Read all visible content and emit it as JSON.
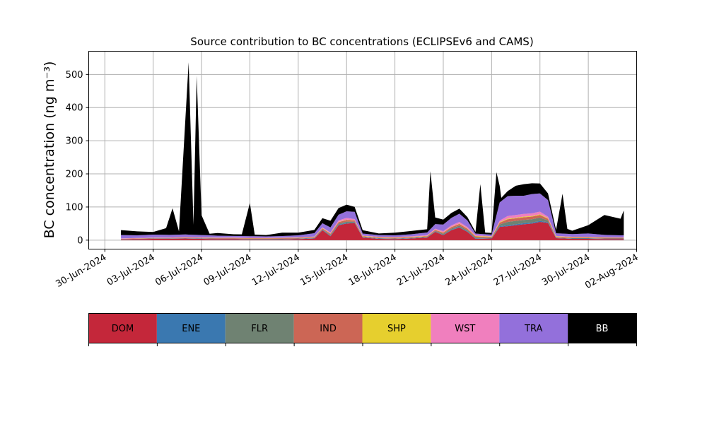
{
  "chart_data": {
    "type": "area",
    "title": "Source contribution to BC concentrations (ECLIPSEv6 and CAMS)",
    "ylabel": "BC concentration (ng m⁻³)",
    "xlabel": "",
    "x_range": [
      "2024-06-29",
      "2024-08-02"
    ],
    "ylim": [
      -27,
      570
    ],
    "grid": true,
    "yticks": [
      0,
      100,
      200,
      300,
      400,
      500
    ],
    "xticks": [
      "30-Jun-2024",
      "03-Jul-2024",
      "06-Jul-2024",
      "09-Jul-2024",
      "12-Jul-2024",
      "15-Jul-2024",
      "18-Jul-2024",
      "21-Jul-2024",
      "24-Jul-2024",
      "27-Jul-2024",
      "30-Jul-2024",
      "02-Aug-2024"
    ],
    "legend_placement": "bottom",
    "series": [
      {
        "name": "DOM",
        "color": "#c4273a",
        "points": [
          [
            "2024-07-01",
            2
          ],
          [
            "2024-07-02",
            3
          ],
          [
            "2024-07-03",
            4
          ],
          [
            "2024-07-04",
            4
          ],
          [
            "2024-07-05",
            5
          ],
          [
            "2024-07-06",
            4
          ],
          [
            "2024-07-07",
            3
          ],
          [
            "2024-07-08",
            3
          ],
          [
            "2024-07-09",
            2
          ],
          [
            "2024-07-10",
            2
          ],
          [
            "2024-07-11",
            2
          ],
          [
            "2024-07-12",
            3
          ],
          [
            "2024-07-13",
            5
          ],
          [
            "2024-07-13.5",
            30
          ],
          [
            "2024-07-14",
            12
          ],
          [
            "2024-07-14.5",
            45
          ],
          [
            "2024-07-15",
            50
          ],
          [
            "2024-07-15.5",
            52
          ],
          [
            "2024-07-16",
            8
          ],
          [
            "2024-07-17",
            4
          ],
          [
            "2024-07-18",
            3
          ],
          [
            "2024-07-19",
            5
          ],
          [
            "2024-07-20",
            8
          ],
          [
            "2024-07-20.5",
            25
          ],
          [
            "2024-07-21",
            15
          ],
          [
            "2024-07-21.5",
            30
          ],
          [
            "2024-07-22",
            38
          ],
          [
            "2024-07-22.5",
            25
          ],
          [
            "2024-07-23",
            4
          ],
          [
            "2024-07-24",
            5
          ],
          [
            "2024-07-24.5",
            40
          ],
          [
            "2024-07-25",
            42
          ],
          [
            "2024-07-25.5",
            45
          ],
          [
            "2024-07-26",
            48
          ],
          [
            "2024-07-26.5",
            50
          ],
          [
            "2024-07-27",
            55
          ],
          [
            "2024-07-27.5",
            52
          ],
          [
            "2024-07-28",
            6
          ],
          [
            "2024-07-29",
            4
          ],
          [
            "2024-07-30",
            4
          ],
          [
            "2024-07-31",
            3
          ],
          [
            "2024-08-01",
            3
          ],
          [
            "2024-08-01.2",
            3
          ]
        ]
      },
      {
        "name": "ENE",
        "color": "#3a78b0",
        "points": [
          [
            "2024-07-01",
            0.5
          ],
          [
            "2024-07-13",
            1
          ],
          [
            "2024-07-15",
            2
          ],
          [
            "2024-07-16",
            1
          ],
          [
            "2024-07-20",
            1
          ],
          [
            "2024-07-22",
            2
          ],
          [
            "2024-07-24",
            1
          ],
          [
            "2024-07-25",
            3
          ],
          [
            "2024-07-27",
            3
          ],
          [
            "2024-07-28",
            1
          ],
          [
            "2024-08-01.2",
            1
          ]
        ]
      },
      {
        "name": "FLR",
        "color": "#6f8272",
        "points": [
          [
            "2024-07-01",
            0.5
          ],
          [
            "2024-07-13",
            1
          ],
          [
            "2024-07-15",
            4
          ],
          [
            "2024-07-16",
            1
          ],
          [
            "2024-07-20",
            1
          ],
          [
            "2024-07-22",
            4
          ],
          [
            "2024-07-24",
            1
          ],
          [
            "2024-07-25",
            10
          ],
          [
            "2024-07-27",
            10
          ],
          [
            "2024-07-28",
            1
          ],
          [
            "2024-08-01.2",
            1
          ]
        ]
      },
      {
        "name": "IND",
        "color": "#cc6655",
        "points": [
          [
            "2024-07-01",
            1
          ],
          [
            "2024-07-13",
            2
          ],
          [
            "2024-07-15",
            5
          ],
          [
            "2024-07-16",
            2
          ],
          [
            "2024-07-20",
            2
          ],
          [
            "2024-07-22",
            5
          ],
          [
            "2024-07-24",
            2
          ],
          [
            "2024-07-25",
            8
          ],
          [
            "2024-07-27",
            8
          ],
          [
            "2024-07-28",
            2
          ],
          [
            "2024-08-01.2",
            2
          ]
        ]
      },
      {
        "name": "SHP",
        "color": "#e6cf2e",
        "points": [
          [
            "2024-07-01",
            0.3
          ],
          [
            "2024-07-15",
            1
          ],
          [
            "2024-07-22",
            1
          ],
          [
            "2024-07-25",
            2
          ],
          [
            "2024-07-27",
            2
          ],
          [
            "2024-08-01.2",
            0.5
          ]
        ]
      },
      {
        "name": "WST",
        "color": "#f07fbe",
        "points": [
          [
            "2024-07-01",
            1
          ],
          [
            "2024-07-13",
            1
          ],
          [
            "2024-07-15",
            5
          ],
          [
            "2024-07-16",
            1
          ],
          [
            "2024-07-20",
            2
          ],
          [
            "2024-07-22",
            5
          ],
          [
            "2024-07-24",
            1
          ],
          [
            "2024-07-25",
            8
          ],
          [
            "2024-07-27",
            8
          ],
          [
            "2024-07-28",
            1
          ],
          [
            "2024-08-01.2",
            1
          ]
        ]
      },
      {
        "name": "TRA",
        "color": "#9370db",
        "points": [
          [
            "2024-07-01",
            10
          ],
          [
            "2024-07-02",
            8
          ],
          [
            "2024-07-03",
            9
          ],
          [
            "2024-07-04",
            8
          ],
          [
            "2024-07-05",
            8
          ],
          [
            "2024-07-06",
            7
          ],
          [
            "2024-07-07",
            6
          ],
          [
            "2024-07-08",
            5
          ],
          [
            "2024-07-09",
            5
          ],
          [
            "2024-07-10",
            4
          ],
          [
            "2024-07-11",
            5
          ],
          [
            "2024-07-12",
            6
          ],
          [
            "2024-07-13",
            10
          ],
          [
            "2024-07-14",
            15
          ],
          [
            "2024-07-15",
            20
          ],
          [
            "2024-07-15.5",
            22
          ],
          [
            "2024-07-16",
            6
          ],
          [
            "2024-07-17",
            5
          ],
          [
            "2024-07-18",
            5
          ],
          [
            "2024-07-19",
            6
          ],
          [
            "2024-07-20",
            8
          ],
          [
            "2024-07-21",
            20
          ],
          [
            "2024-07-22",
            25
          ],
          [
            "2024-07-22.5",
            20
          ],
          [
            "2024-07-23",
            4
          ],
          [
            "2024-07-24",
            5
          ],
          [
            "2024-07-24.5",
            55
          ],
          [
            "2024-07-25",
            60
          ],
          [
            "2024-07-25.5",
            58
          ],
          [
            "2024-07-26",
            55
          ],
          [
            "2024-07-26.5",
            58
          ],
          [
            "2024-07-27",
            55
          ],
          [
            "2024-07-27.5",
            50
          ],
          [
            "2024-07-28",
            8
          ],
          [
            "2024-07-29",
            8
          ],
          [
            "2024-07-30",
            10
          ],
          [
            "2024-07-31",
            7
          ],
          [
            "2024-08-01",
            6
          ],
          [
            "2024-08-01.2",
            6
          ]
        ]
      },
      {
        "name": "BB",
        "color": "#000000",
        "points": [
          [
            "2024-07-01",
            15
          ],
          [
            "2024-07-02",
            12
          ],
          [
            "2024-07-03",
            8
          ],
          [
            "2024-07-03.8",
            20
          ],
          [
            "2024-07-04.2",
            80
          ],
          [
            "2024-07-04.6",
            10
          ],
          [
            "2024-07-05.2",
            520
          ],
          [
            "2024-07-05.5",
            30
          ],
          [
            "2024-07-05.7",
            480
          ],
          [
            "2024-07-06",
            60
          ],
          [
            "2024-07-06.5",
            5
          ],
          [
            "2024-07-07",
            8
          ],
          [
            "2024-07-08",
            5
          ],
          [
            "2024-07-08.5",
            5
          ],
          [
            "2024-07-09",
            100
          ],
          [
            "2024-07-09.3",
            5
          ],
          [
            "2024-07-10",
            4
          ],
          [
            "2024-07-11",
            10
          ],
          [
            "2024-07-12",
            8
          ],
          [
            "2024-07-13",
            10
          ],
          [
            "2024-07-14",
            20
          ],
          [
            "2024-07-15",
            20
          ],
          [
            "2024-07-16",
            10
          ],
          [
            "2024-07-17",
            5
          ],
          [
            "2024-07-18",
            8
          ],
          [
            "2024-07-19",
            10
          ],
          [
            "2024-07-20",
            10
          ],
          [
            "2024-07-20.2",
            175
          ],
          [
            "2024-07-20.5",
            20
          ],
          [
            "2024-07-21",
            15
          ],
          [
            "2024-07-22",
            15
          ],
          [
            "2024-07-23",
            5
          ],
          [
            "2024-07-23.3",
            150
          ],
          [
            "2024-07-23.6",
            5
          ],
          [
            "2024-07-24",
            5
          ],
          [
            "2024-07-24.3",
            130
          ],
          [
            "2024-07-24.6",
            10
          ],
          [
            "2024-07-25",
            15
          ],
          [
            "2024-07-25.5",
            30
          ],
          [
            "2024-07-26",
            35
          ],
          [
            "2024-07-27",
            30
          ],
          [
            "2024-07-27.5",
            20
          ],
          [
            "2024-07-28",
            10
          ],
          [
            "2024-07-28.4",
            120
          ],
          [
            "2024-07-28.7",
            15
          ],
          [
            "2024-07-29",
            10
          ],
          [
            "2024-07-30",
            25
          ],
          [
            "2024-07-31",
            60
          ],
          [
            "2024-08-01",
            50
          ],
          [
            "2024-08-01.2",
            75
          ]
        ]
      }
    ]
  }
}
